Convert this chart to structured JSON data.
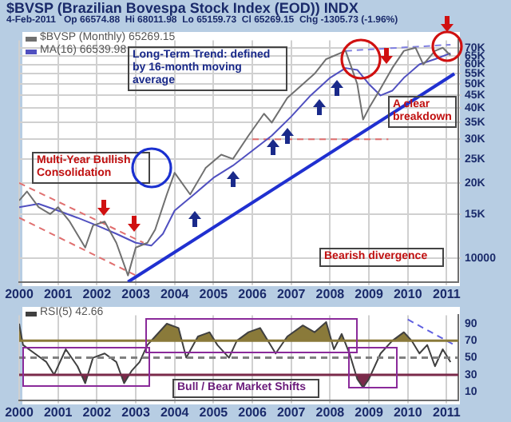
{
  "chart_data": [
    {
      "type": "line",
      "title": "$BVSP (Brazilian Bovespa Stock Index (EOD)) INDX",
      "subtitle": "4-Feb-2011   Op 66574.88  Hi 68011.98  Lo 65159.73  Cl 65269.15  Chg -1305.73 (-1.96%)",
      "series": [
        {
          "name": "$BVSP (Monthly) 65269.15",
          "color": "#707070",
          "x": [
            2000.0,
            2000.2,
            2000.5,
            2000.8,
            2001.0,
            2001.3,
            2001.7,
            2001.9,
            2002.2,
            2002.5,
            2002.8,
            2003.0,
            2003.3,
            2003.5,
            2003.8,
            2004.0,
            2004.4,
            2004.8,
            2005.2,
            2005.5,
            2005.9,
            2006.3,
            2006.5,
            2006.9,
            2007.3,
            2007.6,
            2007.9,
            2008.4,
            2008.7,
            2008.85,
            2009.0,
            2009.3,
            2009.6,
            2009.9,
            2010.2,
            2010.4,
            2010.7,
            2010.9,
            2011.1
          ],
          "values": [
            17000,
            18500,
            16000,
            15000,
            16000,
            14000,
            11000,
            13500,
            14000,
            11500,
            8500,
            11000,
            11500,
            13000,
            18000,
            22000,
            18000,
            23000,
            26000,
            25000,
            31000,
            38000,
            35000,
            44000,
            50000,
            55000,
            63000,
            68000,
            50000,
            36000,
            40000,
            48000,
            58000,
            68000,
            70000,
            60000,
            68000,
            70000,
            65269
          ]
        },
        {
          "name": "MA(16) 66539.98",
          "color": "#5050c0",
          "x": [
            2000.0,
            2000.5,
            2001.0,
            2001.5,
            2002.0,
            2002.5,
            2003.0,
            2003.4,
            2003.7,
            2004.0,
            2004.5,
            2005.0,
            2005.5,
            2006.0,
            2006.5,
            2007.0,
            2007.5,
            2008.0,
            2008.4,
            2008.7,
            2009.0,
            2009.3,
            2009.6,
            2009.9,
            2010.3,
            2010.7,
            2011.1
          ],
          "values": [
            16000,
            16500,
            15500,
            14500,
            13500,
            12500,
            11500,
            11200,
            12500,
            15500,
            18000,
            21000,
            23500,
            27000,
            31000,
            37000,
            45000,
            53000,
            58000,
            57000,
            50000,
            45000,
            47000,
            53000,
            60000,
            63000,
            66540
          ]
        },
        {
          "color": "#2030d0",
          "x": [
            2002.8,
            2011.2
          ],
          "values": [
            8000,
            55000
          ]
        },
        {
          "color": "#e07070",
          "line_style": "dashed",
          "x": [
            2000.0,
            2003.2
          ],
          "values": [
            20000,
            11500
          ]
        },
        {
          "color": "#e07070",
          "line_style": "dashed",
          "x": [
            2000.0,
            2003.0
          ],
          "values": [
            14500,
            8500
          ]
        },
        {
          "color": "#e07070",
          "line_style": "dashed",
          "x": [
            2006.0,
            2009.5
          ],
          "values": [
            30000,
            30000
          ]
        },
        {
          "color": "#8080e0",
          "line_style": "dashed",
          "x": [
            2008.4,
            2011.1
          ],
          "values": [
            68000,
            72000
          ]
        }
      ],
      "xlim": [
        2000,
        2011.3
      ],
      "xticks": [
        2000,
        2001,
        2002,
        2003,
        2004,
        2005,
        2006,
        2007,
        2008,
        2009,
        2010,
        2011
      ],
      "log": "y",
      "ylim": [
        8000,
        75000
      ],
      "yticks": [
        10000,
        {
          "value": 15000,
          "label": "15K"
        },
        {
          "value": 20000,
          "label": "20K"
        },
        {
          "value": 25000,
          "label": "25K"
        },
        {
          "value": 30000,
          "label": "30K"
        },
        {
          "value": 35000,
          "label": "35K"
        },
        {
          "value": 40000,
          "label": "40K"
        },
        {
          "value": 45000,
          "label": "45K"
        },
        {
          "value": 50000,
          "label": "50K"
        },
        {
          "value": 55000,
          "label": "55K"
        },
        {
          "value": 60000,
          "label": "60K"
        },
        {
          "value": 65000,
          "label": "65K"
        },
        {
          "value": 70000,
          "label": "70K"
        }
      ],
      "grid": true,
      "legend": "top left",
      "marker": "none",
      "annotations": [
        "Long-Term Trend: defined by 16-month moving average",
        "A clear breakdown",
        "Multi-Year Bullish Consolidation",
        "Bearish divergence"
      ]
    },
    {
      "type": "line",
      "series": [
        {
          "name": "RSI(5) 42.66",
          "color": "#404040",
          "x": [
            2000.0,
            2000.1,
            2000.4,
            2000.7,
            2000.9,
            2001.2,
            2001.5,
            2001.7,
            2001.9,
            2002.2,
            2002.5,
            2002.7,
            2002.9,
            2003.1,
            2003.3,
            2003.5,
            2003.8,
            2004.1,
            2004.3,
            2004.6,
            2004.9,
            2005.1,
            2005.4,
            2005.6,
            2005.9,
            2006.2,
            2006.4,
            2006.6,
            2006.9,
            2007.3,
            2007.6,
            2007.9,
            2008.1,
            2008.3,
            2008.5,
            2008.7,
            2008.85,
            2009.0,
            2009.3,
            2009.6,
            2009.9,
            2010.1,
            2010.3,
            2010.5,
            2010.7,
            2010.9,
            2011.1
          ],
          "values": [
            90,
            65,
            55,
            45,
            30,
            60,
            40,
            20,
            50,
            55,
            45,
            20,
            35,
            45,
            65,
            75,
            90,
            85,
            50,
            75,
            80,
            65,
            50,
            70,
            80,
            85,
            70,
            55,
            75,
            88,
            80,
            92,
            60,
            78,
            55,
            25,
            15,
            25,
            55,
            70,
            80,
            70,
            55,
            65,
            40,
            60,
            45
          ]
        },
        {
          "color": "#6060e0",
          "line_style": "dashed",
          "x": [
            2010.0,
            2011.2
          ],
          "values": [
            95,
            65
          ]
        }
      ],
      "xlim": [
        2000,
        2011.3
      ],
      "xticks": [
        2000,
        2001,
        2002,
        2003,
        2004,
        2005,
        2006,
        2007,
        2008,
        2009,
        2010,
        2011
      ],
      "ylim": [
        0,
        100
      ],
      "yticks": [
        10,
        30,
        50,
        70,
        90
      ],
      "grid": "x",
      "legend": "top left",
      "marker": "none",
      "ref_lines": [
        {
          "axis": "y",
          "value": 70,
          "color": "#8a7a3a"
        },
        {
          "axis": "y",
          "value": 30,
          "color": "#7a2a4a"
        },
        {
          "axis": "y",
          "value": 50,
          "color": "#808080",
          "line_style": "dashed"
        }
      ],
      "annotations": [
        "Bull / Bear Market Shifts"
      ]
    }
  ]
}
